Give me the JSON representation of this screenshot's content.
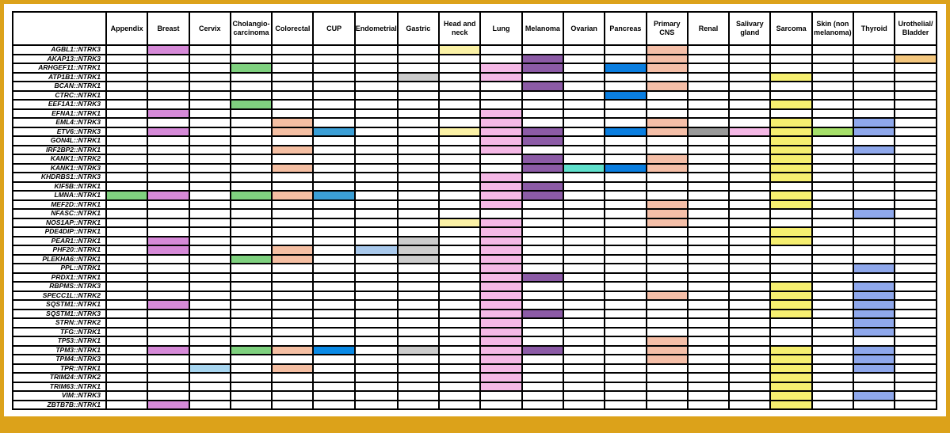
{
  "chart_data": {
    "type": "heatmap",
    "columns": [
      "Appendix",
      "Breast",
      "Cervix",
      "Cholangio-carcinoma",
      "Colorectal",
      "CUP",
      "Endometrial",
      "Gastric",
      "Head and neck",
      "Lung",
      "Melanoma",
      "Ovarian",
      "Pancreas",
      "Primary CNS",
      "Renal",
      "Salivary gland",
      "Sarcoma",
      "Skin (non melanoma)",
      "Thyroid",
      "Urothelial/ Bladder"
    ],
    "column_colors": [
      "#7fd17f",
      "#d68ad8",
      "#a8d6f0",
      "#7fd17f",
      "#f5bfa3",
      "#3b9fd6",
      "#a9c9ec",
      "#cccccc",
      "#fbf2a6",
      "#f5b8e6",
      "#8c5ba6",
      "#5fe0cc",
      "#0a7ee0",
      "#f5bfa8",
      "#999999",
      "#f5b8e6",
      "#f6ef70",
      "#a6e06a",
      "#8fa8ec",
      "#f4c77e"
    ],
    "rows": [
      {
        "label": "AGBL1::NTRK3",
        "cols": [
          1,
          8,
          13
        ]
      },
      {
        "label": "AKAP13::NTRK3",
        "cols": [
          10,
          13,
          19
        ]
      },
      {
        "label": "ARHGEF11::NTRK1",
        "cols": [
          3,
          9,
          10,
          12,
          13
        ]
      },
      {
        "label": "ATP1B1::NTRK1",
        "cols": [
          7,
          9,
          16
        ]
      },
      {
        "label": "BCAN::NTRK1",
        "cols": [
          10,
          13
        ]
      },
      {
        "label": "CTRC::NTRK1",
        "cols": [
          12
        ]
      },
      {
        "label": "EEF1A1::NTRK3",
        "cols": [
          3,
          16
        ]
      },
      {
        "label": "EFNA1::NTRK1",
        "cols": [
          1,
          9
        ]
      },
      {
        "label": "EML4::NTRK3",
        "cols": [
          4,
          9,
          13,
          16,
          18
        ]
      },
      {
        "label": "ETV6::NTRK3",
        "cols": [
          1,
          4,
          5,
          8,
          9,
          10,
          12,
          13,
          14,
          15,
          16,
          17,
          18
        ]
      },
      {
        "label": "GON4L::NTRK1",
        "cols": [
          9,
          10,
          16
        ]
      },
      {
        "label": "IRF2BP2::NTRK1",
        "cols": [
          4,
          9,
          16,
          18
        ]
      },
      {
        "label": "KANK1::NTRK2",
        "cols": [
          10,
          13,
          16
        ]
      },
      {
        "label": "KANK1::NTRK3",
        "cols": [
          4,
          10,
          11,
          12,
          13,
          16
        ]
      },
      {
        "label": "KHDRBS1::NTRK3",
        "cols": [
          9,
          16
        ]
      },
      {
        "label": "KIF5B::NTRK1",
        "cols": [
          9,
          10
        ]
      },
      {
        "label": "LMNA::NTRK1",
        "cols": [
          0,
          1,
          3,
          4,
          5,
          9,
          10,
          16
        ]
      },
      {
        "label": "MEF2D::NTRK1",
        "cols": [
          9,
          13,
          16
        ]
      },
      {
        "label": "NFASC::NTRK1",
        "cols": [
          13,
          18
        ]
      },
      {
        "label": "NOS1AP::NTRK1",
        "cols": [
          8,
          9,
          13
        ]
      },
      {
        "label": "PDE4DIP::NTRK1",
        "cols": [
          9,
          16
        ]
      },
      {
        "label": "PEAR1::NTRK1",
        "cols": [
          1,
          7,
          9,
          16
        ]
      },
      {
        "label": "PHF20::NTRK1",
        "cols": [
          1,
          4,
          6,
          7,
          9
        ]
      },
      {
        "label": "PLEKHA6::NTRK1",
        "cols": [
          3,
          4,
          7,
          9
        ]
      },
      {
        "label": "PPL::NTRK1",
        "cols": [
          9,
          18
        ]
      },
      {
        "label": "PRDX1::NTRK1",
        "cols": [
          9,
          10
        ]
      },
      {
        "label": "RBPMS::NTRK3",
        "cols": [
          9,
          16,
          18
        ]
      },
      {
        "label": "SPECC1L::NTRK2",
        "cols": [
          9,
          13,
          16,
          18
        ]
      },
      {
        "label": "SQSTM1::NTRK1",
        "cols": [
          1,
          9,
          16,
          18
        ]
      },
      {
        "label": "SQSTM1::NTRK3",
        "cols": [
          9,
          10,
          16,
          18
        ]
      },
      {
        "label": "STRN::NTRK2",
        "cols": [
          9,
          18
        ]
      },
      {
        "label": "TFG::NTRK1",
        "cols": [
          9,
          18
        ]
      },
      {
        "label": "TP53::NTRK1",
        "cols": [
          9,
          13
        ]
      },
      {
        "label": "TPM3::NTRK1",
        "cols": [
          1,
          3,
          4,
          5,
          7,
          9,
          10,
          13,
          16,
          18
        ]
      },
      {
        "label": "TPM4::NTRK3",
        "cols": [
          9,
          13,
          16,
          18
        ]
      },
      {
        "label": "TPR::NTRK1",
        "cols": [
          2,
          4,
          9,
          16,
          18
        ]
      },
      {
        "label": "TRIM24::NTRK2",
        "cols": [
          9,
          16
        ]
      },
      {
        "label": "TRIM63::NTRK1",
        "cols": [
          9,
          16
        ]
      },
      {
        "label": "VIM::NTRK3",
        "cols": [
          16,
          18
        ]
      },
      {
        "label": "ZBTB7B::NTRK1",
        "cols": [
          1,
          16
        ]
      }
    ],
    "cell_overrides": [
      {
        "row": 16,
        "col": 5,
        "color": "#3b9fd6"
      },
      {
        "row": 33,
        "col": 5,
        "color": "#0a8ae6"
      },
      {
        "row": 9,
        "col": 5,
        "color": "#3b9fd6"
      },
      {
        "row": 9,
        "col": 8,
        "color": "#fbf2a6"
      },
      {
        "row": 22,
        "col": 6,
        "color": "#a9c9ec"
      }
    ]
  }
}
